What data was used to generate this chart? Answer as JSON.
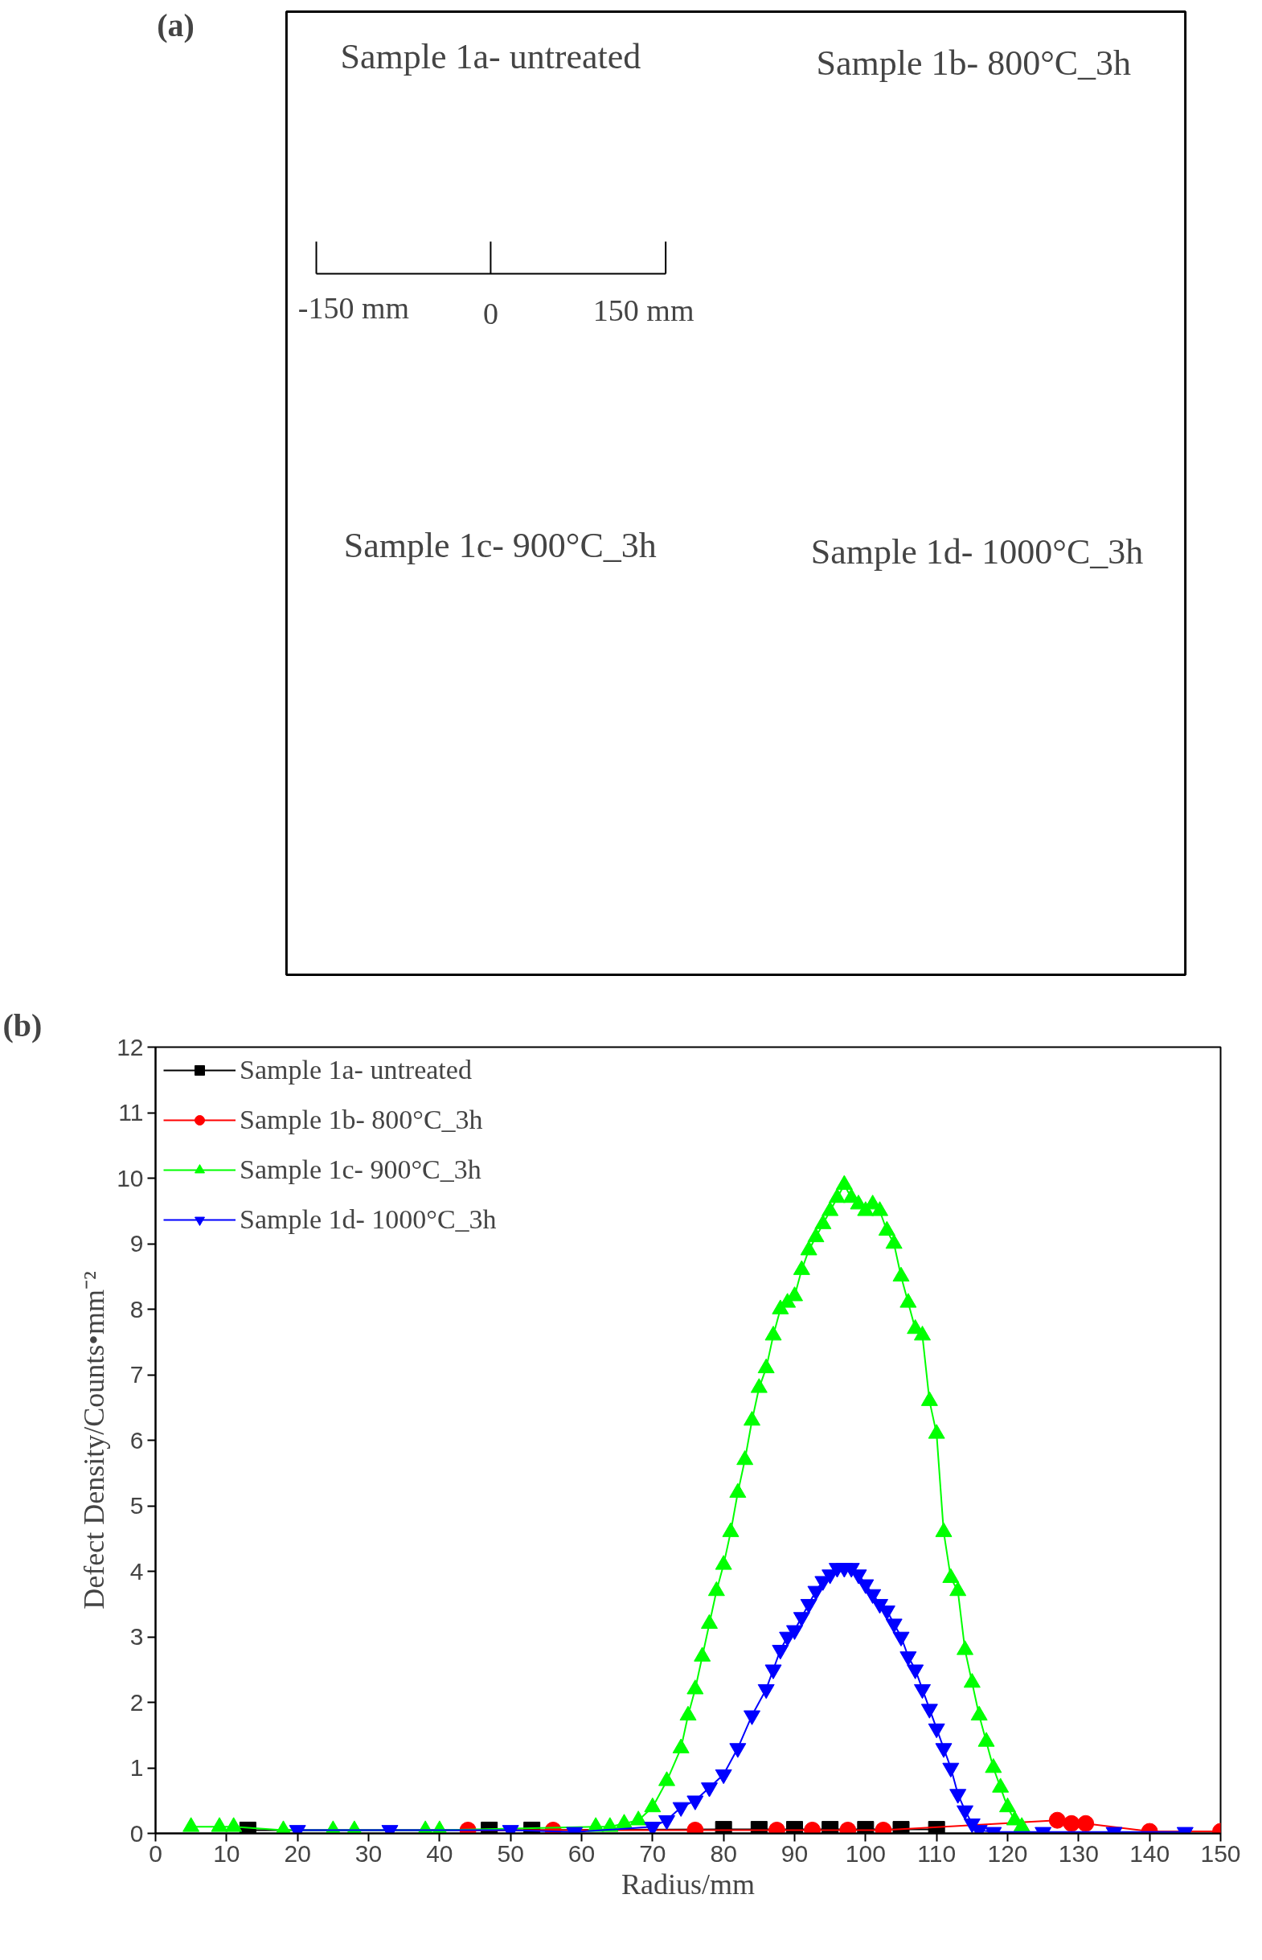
{
  "chart_data": [
    {
      "type": "other",
      "title": "(a)",
      "annotations": [
        "Sample 1a- untreated",
        "Sample 1b- 800°C_3h",
        "Sample 1c- 900°C_3h",
        "Sample 1d- 1000°C_3h",
        "-150 mm",
        "0",
        "150 mm"
      ]
    },
    {
      "type": "line",
      "title": "(b)",
      "xlabel": "Radius/mm",
      "ylabel": "Defect Density/Counts•mm⁻²",
      "xlim": [
        0,
        150
      ],
      "ylim": [
        0,
        12
      ],
      "xticks": [
        0,
        10,
        20,
        30,
        40,
        50,
        60,
        70,
        80,
        90,
        100,
        110,
        120,
        130,
        140,
        150
      ],
      "yticks": [
        0,
        1,
        2,
        3,
        4,
        5,
        6,
        7,
        8,
        9,
        10,
        11,
        12
      ],
      "grid": false,
      "legend": "top left",
      "line_style": "solid",
      "series": [
        {
          "name": "Sample 1a- untreated",
          "color": "#000000",
          "marker": "square",
          "x": [
            13,
            47,
            53,
            80,
            85,
            90,
            95,
            100,
            105,
            110
          ],
          "values": [
            0.05,
            0.05,
            0.05,
            0.06,
            0.06,
            0.06,
            0.06,
            0.06,
            0.06,
            0.06
          ]
        },
        {
          "name": "Sample 1b- 800°C_3h",
          "color": "#ff0000",
          "marker": "circle",
          "x": [
            44,
            56,
            76,
            87.5,
            92.5,
            97.5,
            102.5,
            127,
            129,
            131,
            140,
            150
          ],
          "values": [
            0.05,
            0.05,
            0.05,
            0.05,
            0.05,
            0.05,
            0.05,
            0.2,
            0.15,
            0.15,
            0.03,
            0.03
          ]
        },
        {
          "name": "Sample 1c- 900°C_3h",
          "color": "#00ff00",
          "marker": "triangle",
          "x": [
            5,
            9,
            11,
            18,
            25,
            28,
            38,
            40,
            62,
            64,
            66,
            68,
            70,
            72,
            74,
            75,
            76,
            77,
            78,
            79,
            80,
            81,
            82,
            83,
            84,
            85,
            86,
            87,
            88,
            89,
            90,
            91,
            92,
            93,
            94,
            95,
            96,
            97,
            98,
            99,
            100,
            101,
            102,
            103,
            104,
            105,
            106,
            107,
            108,
            109,
            110,
            111,
            112,
            113,
            114,
            115,
            116,
            117,
            118,
            119,
            120,
            121,
            122
          ],
          "values": [
            0.1,
            0.1,
            0.1,
            0.05,
            0.05,
            0.05,
            0.05,
            0.05,
            0.1,
            0.1,
            0.15,
            0.2,
            0.4,
            0.8,
            1.3,
            1.8,
            2.2,
            2.7,
            3.2,
            3.7,
            4.1,
            4.6,
            5.2,
            5.7,
            6.3,
            6.8,
            7.1,
            7.6,
            8.0,
            8.1,
            8.2,
            8.6,
            8.9,
            9.1,
            9.3,
            9.5,
            9.7,
            9.9,
            9.7,
            9.6,
            9.5,
            9.6,
            9.5,
            9.2,
            9.0,
            8.5,
            8.1,
            7.7,
            7.6,
            6.6,
            6.1,
            4.6,
            3.9,
            3.7,
            2.8,
            2.3,
            1.8,
            1.4,
            1.0,
            0.7,
            0.4,
            0.2,
            0.1
          ]
        },
        {
          "name": "Sample 1d- 1000°C_3h",
          "color": "#0000ff",
          "marker": "triangle_down",
          "x": [
            20,
            33,
            50,
            59,
            70,
            72,
            74,
            76,
            78,
            80,
            82,
            84,
            86,
            87,
            88,
            89,
            90,
            91,
            92,
            93,
            94,
            95,
            96,
            97,
            98,
            99,
            100,
            101,
            102,
            103,
            104,
            105,
            106,
            107,
            108,
            109,
            110,
            111,
            112,
            113,
            114,
            115,
            116,
            118,
            125,
            135,
            145
          ],
          "values": [
            0.05,
            0.05,
            0.05,
            0.02,
            0.1,
            0.2,
            0.4,
            0.5,
            0.7,
            0.9,
            1.3,
            1.8,
            2.2,
            2.5,
            2.8,
            3.0,
            3.1,
            3.3,
            3.5,
            3.7,
            3.85,
            3.95,
            4.05,
            4.05,
            4.05,
            3.95,
            3.8,
            3.65,
            3.5,
            3.4,
            3.2,
            3.0,
            2.7,
            2.5,
            2.2,
            1.9,
            1.6,
            1.3,
            1.0,
            0.6,
            0.35,
            0.15,
            0.05,
            0.02,
            0.02,
            0.02,
            0.02
          ]
        }
      ]
    }
  ]
}
